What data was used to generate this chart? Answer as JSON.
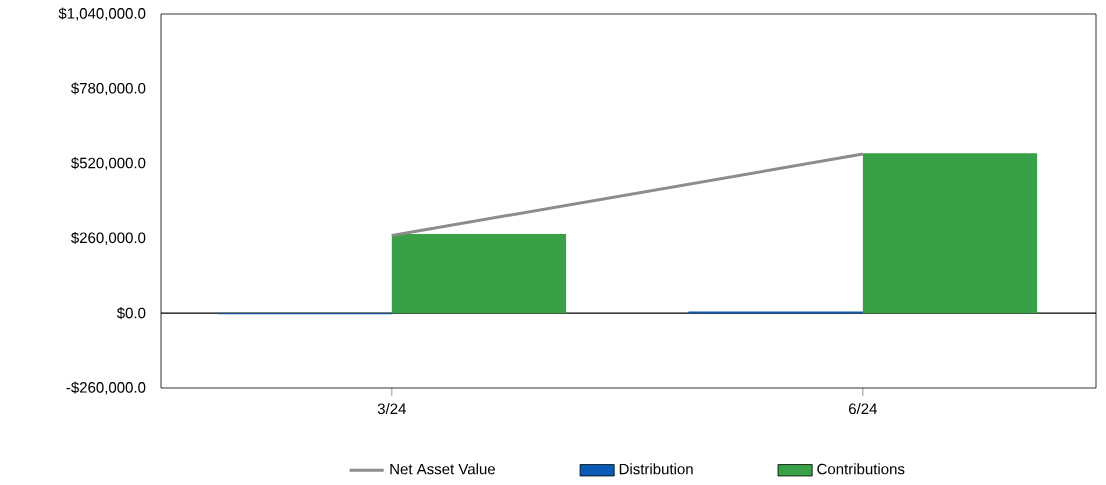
{
  "chart_data": {
    "type": "bar",
    "categories": [
      "3/24",
      "6/24"
    ],
    "series": [
      {
        "name": "Net Asset Value",
        "type": "line",
        "color": "#8c8c8c",
        "values": [
          270000,
          553000
        ]
      },
      {
        "name": "Distribution",
        "color": "#0a5bb5",
        "values": [
          -4000,
          6000
        ]
      },
      {
        "name": "Contributions",
        "color": "#38a046",
        "values": [
          275000,
          556000
        ]
      }
    ],
    "ylim": [
      -260000,
      1040000
    ],
    "yticks": [
      {
        "value": -260000,
        "label": "-$260,000.0"
      },
      {
        "value": 0,
        "label": "$0.0"
      },
      {
        "value": 260000,
        "label": "$260,000.0"
      },
      {
        "value": 520000,
        "label": "$520,000.0"
      },
      {
        "value": 780000,
        "label": "$780,000.0"
      },
      {
        "value": 1040000,
        "label": "$1,040,000.0"
      }
    ],
    "legend": "bottom"
  }
}
